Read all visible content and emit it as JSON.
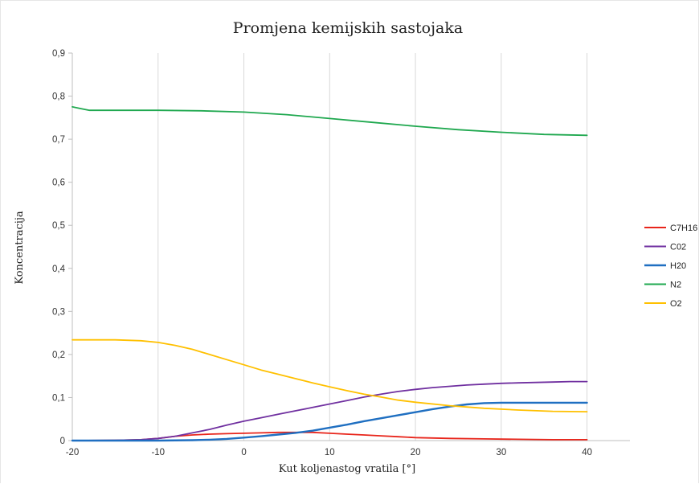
{
  "chart_data": {
    "type": "line",
    "title": "Promjena kemijskih sastojaka",
    "xlabel": "Kut koljenastog vratila [°]",
    "ylabel": "Koncentracija",
    "xlim": [
      -20,
      45
    ],
    "ylim": [
      0,
      0.9
    ],
    "x_ticks": [
      -20,
      -10,
      0,
      10,
      20,
      30,
      40
    ],
    "x_tick_labels": [
      "-20",
      "-10",
      "0",
      "10",
      "20",
      "30",
      "40"
    ],
    "y_ticks": [
      0,
      0.1,
      0.2,
      0.3,
      0.4,
      0.5,
      0.6,
      0.7,
      0.8,
      0.9
    ],
    "y_tick_labels": [
      "0",
      "0,1",
      "0,2",
      "0,3",
      "0,4",
      "0,5",
      "0,6",
      "0,7",
      "0,8",
      "0,9"
    ],
    "grid": "vertical",
    "legend_position": "right",
    "series": [
      {
        "name": "C7H16",
        "color": "#e8251b",
        "x": [
          -20,
          -15,
          -12,
          -10,
          -8,
          -6,
          -4,
          -2,
          0,
          2,
          4,
          6,
          8,
          10,
          12,
          14,
          16,
          18,
          20,
          24,
          28,
          32,
          36,
          40
        ],
        "y": [
          0,
          0.0005,
          0.002,
          0.005,
          0.01,
          0.013,
          0.015,
          0.016,
          0.017,
          0.018,
          0.019,
          0.019,
          0.019,
          0.017,
          0.015,
          0.013,
          0.011,
          0.009,
          0.007,
          0.005,
          0.004,
          0.003,
          0.002,
          0.002
        ]
      },
      {
        "name": "C02",
        "color": "#7030a0",
        "x": [
          -20,
          -15,
          -12,
          -10,
          -8,
          -6,
          -4,
          -2,
          0,
          2,
          4,
          6,
          8,
          10,
          12,
          14,
          16,
          18,
          20,
          22,
          24,
          26,
          28,
          30,
          32,
          34,
          36,
          38,
          40
        ],
        "y": [
          0,
          0.0005,
          0.002,
          0.005,
          0.01,
          0.018,
          0.026,
          0.036,
          0.045,
          0.053,
          0.061,
          0.069,
          0.077,
          0.085,
          0.093,
          0.101,
          0.108,
          0.114,
          0.119,
          0.123,
          0.126,
          0.129,
          0.131,
          0.133,
          0.134,
          0.135,
          0.136,
          0.137,
          0.137
        ]
      },
      {
        "name": "H20",
        "color": "#1f6fc1",
        "x": [
          -20,
          -10,
          -6,
          -4,
          -2,
          0,
          2,
          4,
          6,
          8,
          10,
          12,
          14,
          16,
          18,
          20,
          22,
          24,
          26,
          28,
          30,
          35,
          40
        ],
        "y": [
          0,
          0,
          0.001,
          0.002,
          0.004,
          0.007,
          0.01,
          0.014,
          0.018,
          0.023,
          0.03,
          0.037,
          0.045,
          0.052,
          0.059,
          0.066,
          0.073,
          0.079,
          0.084,
          0.087,
          0.088,
          0.088,
          0.088
        ]
      },
      {
        "name": "N2",
        "color": "#1fa84f",
        "x": [
          -20,
          -19,
          -18,
          -15,
          -10,
          -5,
          0,
          5,
          10,
          15,
          20,
          25,
          30,
          35,
          40
        ],
        "y": [
          0.775,
          0.771,
          0.767,
          0.767,
          0.767,
          0.766,
          0.763,
          0.757,
          0.748,
          0.739,
          0.73,
          0.722,
          0.716,
          0.711,
          0.709
        ]
      },
      {
        "name": "O2",
        "color": "#ffc000",
        "x": [
          -20,
          -15,
          -12,
          -10,
          -8,
          -6,
          -4,
          -2,
          0,
          2,
          4,
          6,
          8,
          10,
          12,
          14,
          16,
          18,
          20,
          24,
          28,
          32,
          36,
          40
        ],
        "y": [
          0.234,
          0.234,
          0.232,
          0.228,
          0.221,
          0.212,
          0.2,
          0.188,
          0.176,
          0.164,
          0.154,
          0.144,
          0.134,
          0.125,
          0.116,
          0.108,
          0.101,
          0.094,
          0.089,
          0.081,
          0.075,
          0.071,
          0.068,
          0.067
        ]
      }
    ]
  }
}
